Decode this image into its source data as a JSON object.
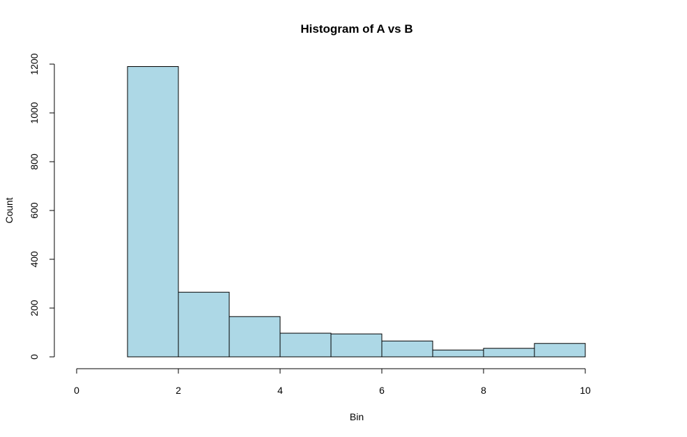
{
  "chart_data": {
    "type": "histogram",
    "title": "Histogram of A vs B",
    "xlabel": "Bin",
    "ylabel": "Count",
    "bar_color": "#add8e6",
    "border_color": "#000000",
    "xlim": [
      0,
      10
    ],
    "ylim": [
      0,
      1200
    ],
    "x_ticks": [
      0,
      2,
      4,
      6,
      8,
      10
    ],
    "y_ticks": [
      0,
      200,
      400,
      600,
      800,
      1000,
      1200
    ],
    "bins": [
      {
        "start": 1,
        "end": 2,
        "count": 1190
      },
      {
        "start": 2,
        "end": 3,
        "count": 265
      },
      {
        "start": 3,
        "end": 4,
        "count": 165
      },
      {
        "start": 4,
        "end": 5,
        "count": 97
      },
      {
        "start": 5,
        "end": 6,
        "count": 94
      },
      {
        "start": 6,
        "end": 7,
        "count": 65
      },
      {
        "start": 7,
        "end": 8,
        "count": 28
      },
      {
        "start": 8,
        "end": 9,
        "count": 35
      },
      {
        "start": 9,
        "end": 10,
        "count": 55
      }
    ]
  }
}
